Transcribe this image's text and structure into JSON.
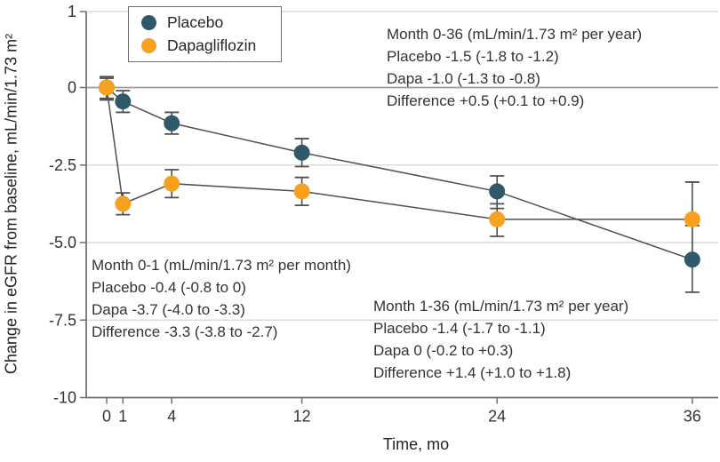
{
  "chart_data": {
    "type": "line",
    "title": "",
    "xlabel": "Time, mo",
    "ylabel": "Change in eGFR from baseline, mL/min/1.73 m²",
    "x": [
      0,
      1,
      4,
      12,
      24,
      36
    ],
    "x_tick_labels": [
      "0",
      "1",
      "4",
      "12",
      "24",
      "36"
    ],
    "y_tick_values": [
      1,
      0,
      -2.5,
      -5,
      -7.5,
      -10
    ],
    "y_tick_labels": [
      "1",
      "0",
      "-2.5",
      "-5.0",
      "-7.5",
      "-10"
    ],
    "xlim": [
      0,
      36
    ],
    "ylim": [
      1,
      -10
    ],
    "grid": "horizontal",
    "legend_position": "top-left-inside",
    "series": [
      {
        "name": "Placebo",
        "color": "#2E5968",
        "values": [
          0,
          -0.45,
          -1.15,
          -2.1,
          -3.35,
          -5.55
        ],
        "ci_low": [
          -0.35,
          -0.8,
          -1.5,
          -2.55,
          -3.9,
          -6.6
        ],
        "ci_high": [
          0.35,
          -0.1,
          -0.8,
          -1.65,
          -2.85,
          -4.45
        ]
      },
      {
        "name": "Dapagliflozin",
        "color": "#F8A11E",
        "values": [
          0,
          -3.75,
          -3.1,
          -3.35,
          -4.25,
          -4.25
        ],
        "ci_low": [
          -0.4,
          -4.1,
          -3.55,
          -3.8,
          -4.8,
          -5.45
        ],
        "ci_high": [
          0.3,
          -3.4,
          -2.65,
          -2.9,
          -3.75,
          -3.05
        ]
      }
    ],
    "annotations": [
      {
        "lines": [
          "Month 0-36 (mL/min/1.73 m² per year)",
          "Placebo -1.5 (-1.8 to -1.2)",
          "Dapa -1.0 (-1.3 to -0.8)",
          "Difference +0.5 (+0.1 to +0.9)"
        ]
      },
      {
        "lines": [
          "Month 0-1 (mL/min/1.73 m² per month)",
          "Placebo -0.4 (-0.8 to 0)",
          "Dapa -3.7 (-4.0 to -3.3)",
          "Difference -3.3 (-3.8 to -2.7)"
        ]
      },
      {
        "lines": [
          "Month 1-36 (mL/min/1.73 m² per year)",
          "Placebo -1.4 (-1.7 to -1.1)",
          "Dapa 0 (-0.2 to +0.3)",
          "Difference +1.4 (+1.0 to +1.8)"
        ]
      }
    ],
    "colors": {
      "gridline": "#DCDCDC",
      "zero_line": "#9B9B9B",
      "axis": "#6F6F6F",
      "error_and_line": "#4F4F4F",
      "text": "#333333"
    }
  }
}
